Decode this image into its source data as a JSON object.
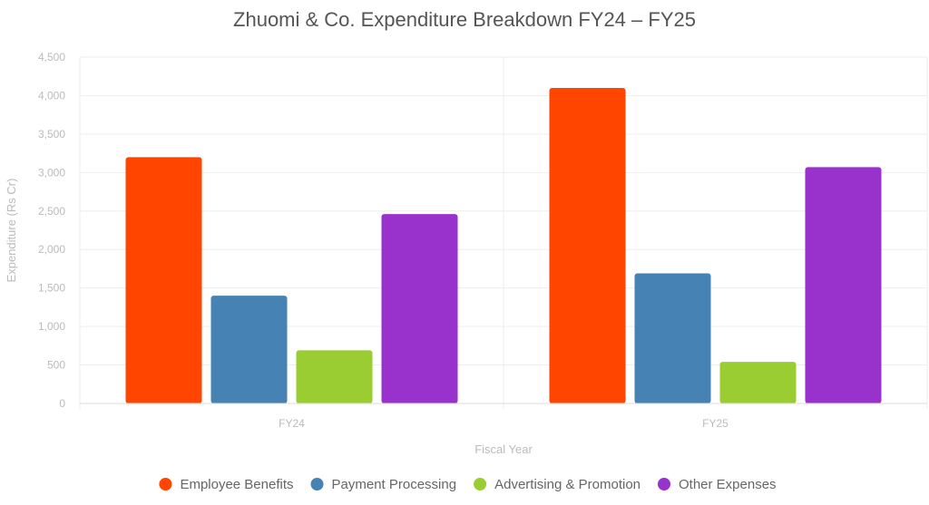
{
  "chart_data": {
    "type": "bar",
    "title": "Zhuomi & Co. Expenditure Breakdown FY24 – FY25",
    "xlabel": "Fiscal Year",
    "ylabel": "Expenditure (Rs Cr)",
    "categories": [
      "FY24",
      "FY25"
    ],
    "ylim": [
      0,
      4500
    ],
    "yticks": [
      0,
      500,
      1000,
      1500,
      2000,
      2500,
      3000,
      3500,
      4000,
      4500
    ],
    "ytick_labels": [
      "0",
      "500",
      "1,000",
      "1,500",
      "2,000",
      "2,500",
      "3,000",
      "3,500",
      "4,000",
      "4,500"
    ],
    "grid": true,
    "legend_position": "bottom",
    "series": [
      {
        "name": "Employee Benefits",
        "color": "#ff4500",
        "values": [
          3200,
          4100
        ]
      },
      {
        "name": "Payment Processing",
        "color": "#4682b4",
        "values": [
          1400,
          1690
        ]
      },
      {
        "name": "Advertising & Promotion",
        "color": "#9acd32",
        "values": [
          690,
          540
        ]
      },
      {
        "name": "Other Expenses",
        "color": "#9932cc",
        "values": [
          2460,
          3070
        ]
      }
    ]
  }
}
